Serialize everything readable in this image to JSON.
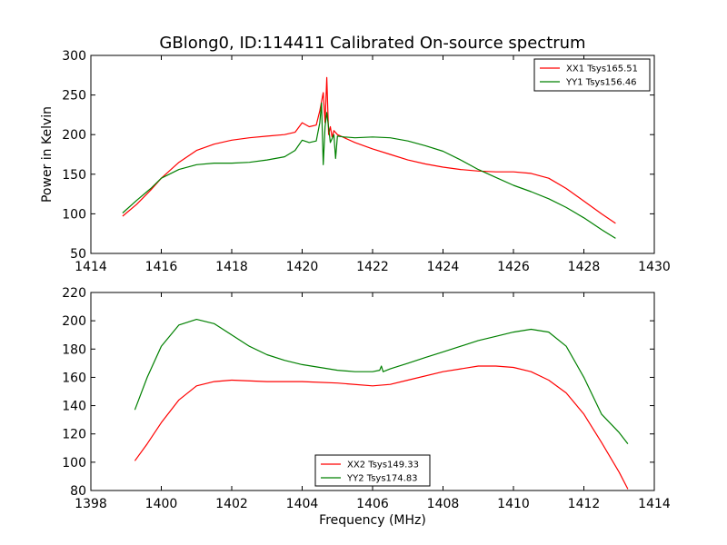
{
  "chart_data": [
    {
      "type": "line",
      "title": "GBlong0, ID:114411 Calibrated On-source spectrum",
      "xlabel": "",
      "ylabel": "Power in Kelvin",
      "xlim": [
        1414,
        1430
      ],
      "ylim": [
        50,
        300
      ],
      "xticks": [
        1414,
        1416,
        1418,
        1420,
        1422,
        1424,
        1426,
        1428,
        1430
      ],
      "yticks": [
        50,
        100,
        150,
        200,
        250,
        300
      ],
      "grid": false,
      "legend_position": "top-right",
      "series": [
        {
          "name": "XX1 Tsys165.51",
          "color": "#ff0000",
          "x": [
            1414.9,
            1415.3,
            1415.7,
            1416.0,
            1416.5,
            1417.0,
            1417.5,
            1418.0,
            1418.5,
            1419.0,
            1419.5,
            1419.8,
            1420.0,
            1420.2,
            1420.4,
            1420.5,
            1420.6,
            1420.65,
            1420.7,
            1420.75,
            1420.8,
            1420.85,
            1420.9,
            1421.0,
            1421.2,
            1421.5,
            1422.0,
            1422.5,
            1423.0,
            1423.5,
            1424.0,
            1424.5,
            1425.0,
            1425.5,
            1426.0,
            1426.5,
            1427.0,
            1427.5,
            1428.0,
            1428.5,
            1428.9
          ],
          "y": [
            97,
            112,
            130,
            145,
            165,
            180,
            188,
            193,
            196,
            198,
            200,
            203,
            215,
            210,
            212,
            230,
            253,
            215,
            272,
            200,
            210,
            197,
            205,
            200,
            196,
            190,
            182,
            175,
            168,
            163,
            159,
            156,
            154,
            153,
            153,
            151,
            145,
            132,
            116,
            100,
            88
          ]
        },
        {
          "name": "YY1 Tsys156.46",
          "color": "#008000",
          "x": [
            1414.9,
            1415.3,
            1415.7,
            1416.0,
            1416.5,
            1417.0,
            1417.5,
            1418.0,
            1418.5,
            1419.0,
            1419.5,
            1419.8,
            1420.0,
            1420.2,
            1420.4,
            1420.5,
            1420.55,
            1420.6,
            1420.65,
            1420.7,
            1420.8,
            1420.9,
            1420.95,
            1421.0,
            1421.2,
            1421.5,
            1422.0,
            1422.5,
            1423.0,
            1423.5,
            1424.0,
            1424.5,
            1425.0,
            1425.5,
            1426.0,
            1426.5,
            1427.0,
            1427.5,
            1428.0,
            1428.5,
            1428.9
          ],
          "y": [
            101,
            117,
            132,
            145,
            156,
            162,
            164,
            164,
            165,
            168,
            172,
            180,
            193,
            190,
            192,
            215,
            240,
            162,
            210,
            228,
            190,
            200,
            170,
            198,
            197,
            196,
            197,
            196,
            192,
            186,
            179,
            168,
            156,
            146,
            136,
            128,
            119,
            108,
            95,
            80,
            69
          ]
        }
      ]
    },
    {
      "type": "line",
      "title": "",
      "xlabel": "Frequency (MHz)",
      "ylabel": "",
      "xlim": [
        1398,
        1414
      ],
      "ylim": [
        80,
        220
      ],
      "xticks": [
        1398,
        1400,
        1402,
        1404,
        1406,
        1408,
        1410,
        1412,
        1414
      ],
      "yticks": [
        80,
        100,
        120,
        140,
        160,
        180,
        200,
        220
      ],
      "grid": false,
      "legend_position": "bottom-center",
      "series": [
        {
          "name": "XX2 Tsys149.33",
          "color": "#ff0000",
          "x": [
            1399.25,
            1399.6,
            1400.0,
            1400.5,
            1401.0,
            1401.5,
            1402.0,
            1403.0,
            1404.0,
            1405.0,
            1406.0,
            1406.5,
            1407.0,
            1408.0,
            1408.5,
            1409.0,
            1409.5,
            1410.0,
            1410.5,
            1411.0,
            1411.5,
            1412.0,
            1412.5,
            1413.0,
            1413.25
          ],
          "y": [
            101,
            113,
            128,
            144,
            154,
            157,
            158,
            157,
            157,
            156,
            154,
            155,
            158,
            164,
            166,
            168,
            168,
            167,
            164,
            158,
            149,
            134,
            114,
            93,
            81
          ]
        },
        {
          "name": "YY2 Tsys174.83",
          "color": "#008000",
          "x": [
            1399.25,
            1399.6,
            1400.0,
            1400.5,
            1401.0,
            1401.5,
            1402.0,
            1402.5,
            1403.0,
            1403.5,
            1404.0,
            1404.5,
            1405.0,
            1405.5,
            1406.0,
            1406.2,
            1406.25,
            1406.3,
            1406.5,
            1407.0,
            1407.5,
            1408.0,
            1408.5,
            1409.0,
            1409.5,
            1410.0,
            1410.5,
            1411.0,
            1411.5,
            1412.0,
            1412.5,
            1413.0,
            1413.25
          ],
          "y": [
            137,
            160,
            182,
            197,
            201,
            198,
            190,
            182,
            176,
            172,
            169,
            167,
            165,
            164,
            164,
            165,
            168,
            164,
            166,
            170,
            174,
            178,
            182,
            186,
            189,
            192,
            194,
            192,
            182,
            160,
            134,
            121,
            113
          ]
        }
      ]
    }
  ]
}
